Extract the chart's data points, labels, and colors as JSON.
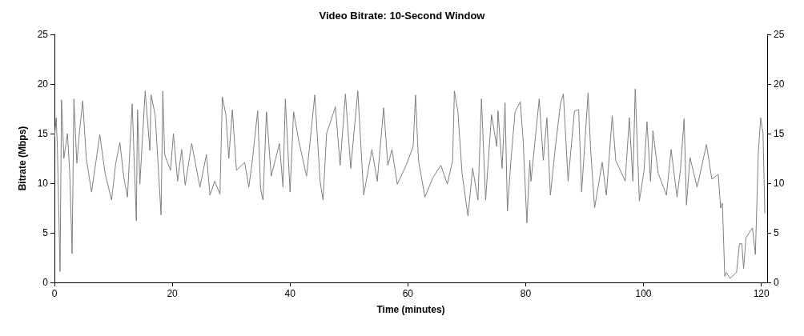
{
  "chart_data": {
    "type": "line",
    "title": "Video Bitrate: 10-Second Window",
    "xlabel": "Time (minutes)",
    "ylabel": "Bitrate (Mbps)",
    "xlim": [
      0,
      121
    ],
    "xticks": [
      0,
      20,
      40,
      60,
      80,
      100,
      120
    ],
    "ylim": [
      0,
      25
    ],
    "yticks": [
      0,
      5,
      10,
      15,
      20,
      25
    ],
    "y2lim": [
      0,
      25
    ],
    "y2ticks": [
      0,
      5,
      10,
      15,
      20,
      25
    ],
    "marker": "none",
    "line_style": "solid",
    "series": [
      {
        "color": "#7f7f7f",
        "x": [
          0,
          0.3,
          0.5,
          0.95,
          1.2,
          1.6,
          2.2,
          2.6,
          3.0,
          3.3,
          3.8,
          4.3,
          4.8,
          5.4,
          6.3,
          7.0,
          7.7,
          8.6,
          9.7,
          10.4,
          11.1,
          11.8,
          12.4,
          13.2,
          13.9,
          14.1,
          14.5,
          15.4,
          16.2,
          16.4,
          17.1,
          18.1,
          18.4,
          18.7,
          19.7,
          20.2,
          20.9,
          21.6,
          22.2,
          23.3,
          24.7,
          25.8,
          26.4,
          27.2,
          28.1,
          28.5,
          29.1,
          29.6,
          30.2,
          30.9,
          32.3,
          33.0,
          33.6,
          34.5,
          35.0,
          35.4,
          36.0,
          36.8,
          38.2,
          38.8,
          39.2,
          40.0,
          40.6,
          41.5,
          42.8,
          44.2,
          45.1,
          45.6,
          46.2,
          47.7,
          48.5,
          49.4,
          50.3,
          51.5,
          52.5,
          53.9,
          54.8,
          55.9,
          56.6,
          57.3,
          58.2,
          59.7,
          60.9,
          61.3,
          61.8,
          62.9,
          64.2,
          65.6,
          66.7,
          67.6,
          67.9,
          68.5,
          69.2,
          70.2,
          71.0,
          71.9,
          72.5,
          73.2,
          74.2,
          75.1,
          75.3,
          76.0,
          76.5,
          76.9,
          77.5,
          78.2,
          79.1,
          79.6,
          80.2,
          80.7,
          80.9,
          82.3,
          83.0,
          83.6,
          84.2,
          85.0,
          85.9,
          86.4,
          87.2,
          88.3,
          89.0,
          89.5,
          90.6,
          91.0,
          91.7,
          93.0,
          93.7,
          94.7,
          95.3,
          96.9,
          97.6,
          98.2,
          98.6,
          99.3,
          100.1,
          100.6,
          101.2,
          101.6,
          102.5,
          103.9,
          104.7,
          105.7,
          106.3,
          106.9,
          107.3,
          107.9,
          109.1,
          110.7,
          111.6,
          112.7,
          113.1,
          113.4,
          113.8,
          114.1,
          114.7,
          115.8,
          116.3,
          116.7,
          117.0,
          117.4,
          118.5,
          119.0,
          119.5,
          119.9,
          120.3,
          120.6
        ],
        "values": [
          14.5,
          16.6,
          13.5,
          1.1,
          18.4,
          12.5,
          15,
          11,
          2.9,
          18.5,
          12,
          15.5,
          18.3,
          12.5,
          9.1,
          12,
          14.9,
          11,
          8.3,
          12,
          14.1,
          10.5,
          8.6,
          18,
          6.2,
          17.4,
          9.9,
          19.3,
          13.3,
          18.9,
          16.9,
          6.8,
          19.3,
          12.9,
          11.3,
          15,
          10.2,
          13.4,
          9.8,
          14,
          9.6,
          12.9,
          8.8,
          10.2,
          8.9,
          18.7,
          16.9,
          12.5,
          17.4,
          11.3,
          12.1,
          9.6,
          12.3,
          17.3,
          9.4,
          8.3,
          17.2,
          10.7,
          14,
          9.6,
          18.5,
          9.1,
          17.2,
          14.2,
          10.7,
          18.9,
          10.2,
          8.3,
          15,
          17.7,
          11.8,
          19,
          11.5,
          19.3,
          8.8,
          13.4,
          10.2,
          17.6,
          11.8,
          13.4,
          9.9,
          11.8,
          13.7,
          18.9,
          12.3,
          8.6,
          10.5,
          11.8,
          9.9,
          12.3,
          19.3,
          17.2,
          11,
          6.7,
          11.5,
          8.3,
          18.5,
          8.3,
          16.9,
          13.7,
          17.3,
          11.5,
          18.1,
          7.2,
          12.3,
          17.2,
          18.2,
          14,
          6,
          12.3,
          10.2,
          18.5,
          12.3,
          16.6,
          8.8,
          13.4,
          18,
          19,
          10.2,
          17.3,
          17.4,
          9.1,
          19.1,
          13.7,
          7.5,
          12.1,
          8.8,
          16.8,
          12.3,
          10.2,
          16.6,
          10.2,
          19.5,
          8.2,
          11.3,
          16.2,
          10.2,
          15.3,
          11,
          8.8,
          13.4,
          8.6,
          11.5,
          16.5,
          7.8,
          12.6,
          9.6,
          13.9,
          10.4,
          10.9,
          7.5,
          8,
          0.6,
          1,
          0.4,
          1,
          3.9,
          3.9,
          1.4,
          4.5,
          5.5,
          2.8,
          13.1,
          16.6,
          15,
          7
        ]
      }
    ]
  }
}
